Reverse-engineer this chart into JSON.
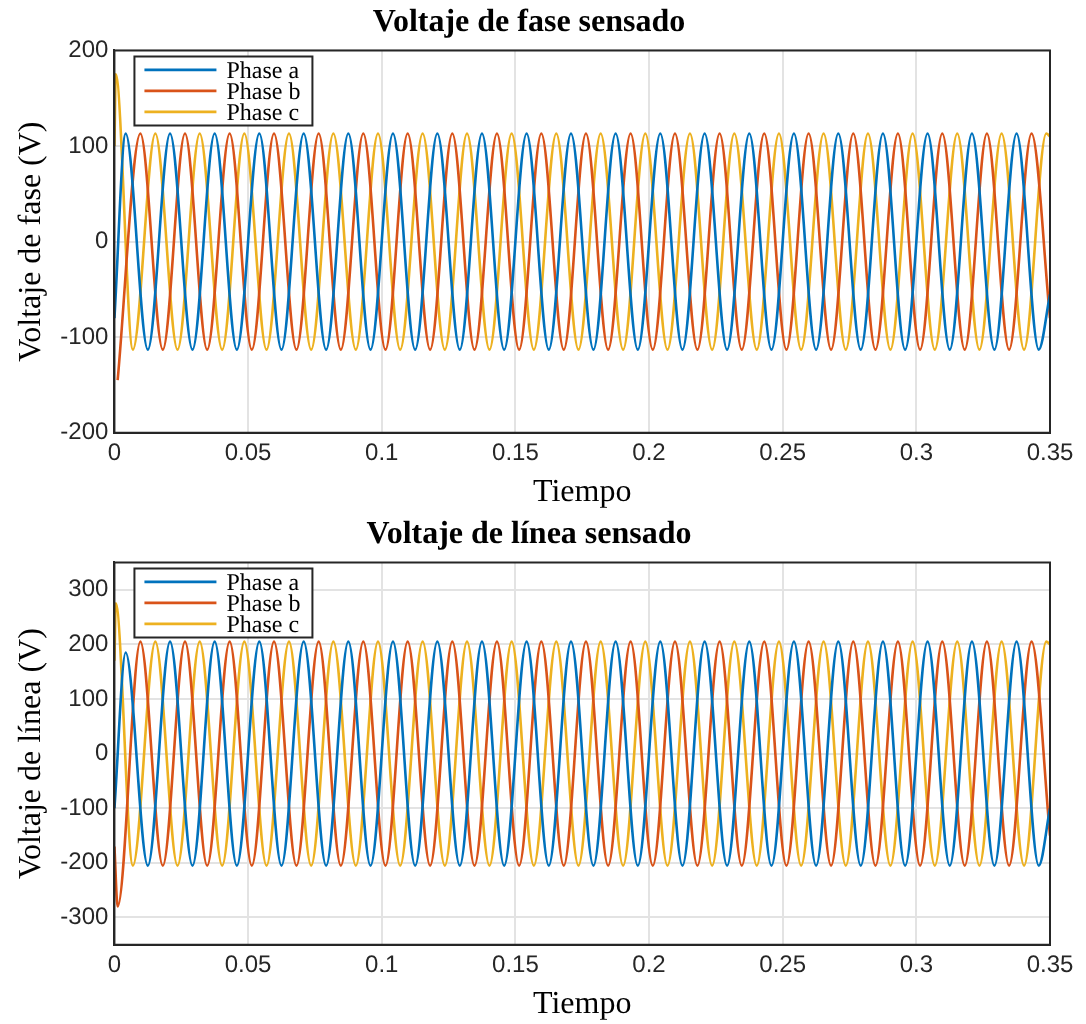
{
  "chart_data": [
    {
      "type": "line",
      "title": "Voltaje de fase sensado",
      "xlabel": "Tiempo",
      "ylabel": "Voltaje de fase (V)",
      "xlim": [
        0,
        0.35
      ],
      "xticks": [
        0,
        0.05,
        0.1,
        0.15,
        0.2,
        0.25,
        0.3,
        0.35
      ],
      "ylim": [
        -200,
        200
      ],
      "yticks": [
        -200,
        -100,
        0,
        100,
        200
      ],
      "grid": true,
      "legend": "top left",
      "marker": "none",
      "series": [
        {
          "name": "Phase a",
          "color": "#0072bd",
          "x": [
            0,
            0.0042,
            0.0125,
            0.0208,
            0.0292,
            0.0375,
            0.0458,
            0.0542,
            0.0625,
            0.0708,
            0.0792,
            0.0875,
            0.0958,
            0.1042,
            0.1125,
            0.1208,
            0.1292,
            0.1375,
            0.1458,
            0.1542,
            0.1625,
            0.1708,
            0.1792,
            0.1875,
            0.1958,
            0.2042,
            0.2125,
            0.2208,
            0.2292,
            0.2375,
            0.2458,
            0.2542,
            0.2625,
            0.2708,
            0.2792,
            0.2875,
            0.2958,
            0.3042,
            0.3125,
            0.3208,
            0.3292,
            0.3375,
            0.3458,
            0.35
          ],
          "values": [
            -80,
            113,
            -113,
            113,
            -113,
            113,
            -113,
            113,
            -113,
            113,
            -113,
            113,
            -113,
            113,
            -113,
            113,
            -113,
            113,
            -113,
            113,
            -113,
            113,
            -113,
            113,
            -113,
            113,
            -113,
            113,
            -113,
            113,
            -113,
            113,
            -113,
            113,
            -113,
            113,
            -113,
            113,
            -113,
            113,
            -113,
            113,
            -113,
            -55
          ]
        },
        {
          "name": "Phase b",
          "color": "#d95319",
          "x": [
            0.0012,
            0.0097,
            0.0181,
            0.0264,
            0.0347,
            0.0431,
            0.0514,
            0.0597,
            0.0681,
            0.0764,
            0.0847,
            0.0931,
            0.1014,
            0.1097,
            0.1181,
            0.1264,
            0.1347,
            0.1431,
            0.1514,
            0.1597,
            0.1681,
            0.1764,
            0.1847,
            0.1931,
            0.2014,
            0.2097,
            0.2181,
            0.2264,
            0.2347,
            0.2431,
            0.2514,
            0.2597,
            0.2681,
            0.2764,
            0.2847,
            0.2931,
            0.3014,
            0.3097,
            0.3181,
            0.3264,
            0.3347,
            0.3431,
            0.35
          ],
          "values": [
            -145,
            113,
            -113,
            113,
            -113,
            113,
            -113,
            113,
            -113,
            113,
            -113,
            113,
            -113,
            113,
            -113,
            113,
            -113,
            113,
            -113,
            113,
            -113,
            113,
            -113,
            113,
            -113,
            113,
            -113,
            113,
            -113,
            113,
            -113,
            113,
            -113,
            113,
            -113,
            113,
            -113,
            113,
            -113,
            113,
            -113,
            113,
            -80
          ]
        },
        {
          "name": "Phase c",
          "color": "#edb120",
          "x": [
            0,
            0.0005,
            0.0069,
            0.0153,
            0.0236,
            0.0319,
            0.0403,
            0.0486,
            0.0569,
            0.0653,
            0.0736,
            0.0819,
            0.0903,
            0.0986,
            0.1069,
            0.1153,
            0.1236,
            0.1319,
            0.1403,
            0.1486,
            0.1569,
            0.1653,
            0.1736,
            0.1819,
            0.1903,
            0.1986,
            0.2069,
            0.2153,
            0.2236,
            0.2319,
            0.2403,
            0.2486,
            0.2569,
            0.2653,
            0.2736,
            0.2819,
            0.2903,
            0.2986,
            0.3069,
            0.3153,
            0.3236,
            0.3319,
            0.3403,
            0.3486,
            0.35
          ],
          "values": [
            100,
            175,
            -113,
            113,
            -113,
            113,
            -113,
            113,
            -113,
            113,
            -113,
            113,
            -113,
            113,
            -113,
            113,
            -113,
            113,
            -113,
            113,
            -113,
            113,
            -113,
            113,
            -113,
            113,
            -113,
            113,
            -113,
            113,
            -113,
            113,
            -113,
            113,
            -113,
            113,
            -113,
            113,
            -113,
            113,
            -113,
            113,
            -113,
            113,
            110
          ]
        }
      ]
    },
    {
      "type": "line",
      "title": "Voltaje de línea sensado",
      "xlabel": "Tiempo",
      "ylabel": "Voltaje de línea (V)",
      "xlim": [
        0,
        0.35
      ],
      "xticks": [
        0,
        0.05,
        0.1,
        0.15,
        0.2,
        0.25,
        0.3,
        0.35
      ],
      "ylim": [
        -350,
        350
      ],
      "yticks": [
        -300,
        -200,
        -100,
        0,
        100,
        200,
        300
      ],
      "grid": true,
      "legend": "top left",
      "marker": "none",
      "series": [
        {
          "name": "Phase a",
          "color": "#0072bd",
          "x": [
            0,
            0.0042,
            0.0125,
            0.0208,
            0.0292,
            0.0375,
            0.0458,
            0.0542,
            0.0625,
            0.0708,
            0.0792,
            0.0875,
            0.0958,
            0.1042,
            0.1125,
            0.1208,
            0.1292,
            0.1375,
            0.1458,
            0.1542,
            0.1625,
            0.1708,
            0.1792,
            0.1875,
            0.1958,
            0.2042,
            0.2125,
            0.2208,
            0.2292,
            0.2375,
            0.2458,
            0.2542,
            0.2625,
            0.2708,
            0.2792,
            0.2875,
            0.2958,
            0.3042,
            0.3125,
            0.3208,
            0.3292,
            0.3375,
            0.3458,
            0.35
          ],
          "values": [
            -100,
            185,
            -205,
            205,
            -205,
            205,
            -205,
            205,
            -205,
            205,
            -205,
            205,
            -205,
            205,
            -205,
            205,
            -205,
            205,
            -205,
            205,
            -205,
            205,
            -205,
            205,
            -205,
            205,
            -205,
            205,
            -205,
            205,
            -205,
            205,
            -205,
            205,
            -205,
            205,
            -205,
            205,
            -205,
            205,
            -205,
            205,
            -205,
            -100
          ]
        },
        {
          "name": "Phase b",
          "color": "#d95319",
          "x": [
            0,
            0.0012,
            0.0097,
            0.0181,
            0.0264,
            0.0347,
            0.0431,
            0.0514,
            0.0597,
            0.0681,
            0.0764,
            0.0847,
            0.0931,
            0.1014,
            0.1097,
            0.1181,
            0.1264,
            0.1347,
            0.1431,
            0.1514,
            0.1597,
            0.1681,
            0.1764,
            0.1847,
            0.1931,
            0.2014,
            0.2097,
            0.2181,
            0.2264,
            0.2347,
            0.2431,
            0.2514,
            0.2597,
            0.2681,
            0.2764,
            0.2847,
            0.2931,
            0.3014,
            0.3097,
            0.3181,
            0.3264,
            0.3347,
            0.3431,
            0.35
          ],
          "values": [
            -170,
            -280,
            205,
            -205,
            205,
            -205,
            205,
            -205,
            205,
            -205,
            205,
            -205,
            205,
            -205,
            205,
            -205,
            205,
            -205,
            205,
            -205,
            205,
            -205,
            205,
            -205,
            205,
            -205,
            205,
            -205,
            205,
            -205,
            205,
            -205,
            205,
            -205,
            205,
            -205,
            205,
            -205,
            205,
            -205,
            205,
            -205,
            205,
            -150
          ]
        },
        {
          "name": "Phase c",
          "color": "#edb120",
          "x": [
            0,
            0.0005,
            0.0069,
            0.0153,
            0.0236,
            0.0319,
            0.0403,
            0.0486,
            0.0569,
            0.0653,
            0.0736,
            0.0819,
            0.0903,
            0.0986,
            0.1069,
            0.1153,
            0.1236,
            0.1319,
            0.1403,
            0.1486,
            0.1569,
            0.1653,
            0.1736,
            0.1819,
            0.1903,
            0.1986,
            0.2069,
            0.2153,
            0.2236,
            0.2319,
            0.2403,
            0.2486,
            0.2569,
            0.2653,
            0.2736,
            0.2819,
            0.2903,
            0.2986,
            0.3069,
            0.3153,
            0.3236,
            0.3319,
            0.3403,
            0.3486,
            0.35
          ],
          "values": [
            170,
            275,
            -205,
            205,
            -205,
            205,
            -205,
            205,
            -205,
            205,
            -205,
            205,
            -205,
            205,
            -205,
            205,
            -205,
            205,
            -205,
            205,
            -205,
            205,
            -205,
            205,
            -205,
            205,
            -205,
            205,
            -205,
            205,
            -205,
            205,
            -205,
            205,
            -205,
            205,
            -205,
            205,
            -205,
            205,
            -205,
            205,
            -205,
            205,
            200
          ]
        }
      ]
    }
  ]
}
